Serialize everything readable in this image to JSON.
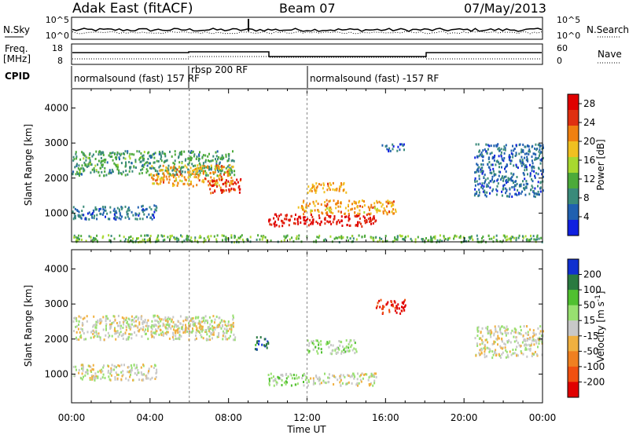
{
  "header": {
    "title": "Adak East (fitACF)",
    "beam": "Beam 07",
    "date": "07/May/2013"
  },
  "top_panels": {
    "nsky": {
      "label": "N.Sky",
      "ticks": [
        "10^5",
        "10^0"
      ],
      "right_label": "N.Search",
      "right_ticks": [
        "10^5",
        "10^0"
      ]
    },
    "freq": {
      "label_line1": "Freq.",
      "label_line2": "[MHz]",
      "ticks": [
        "18",
        "8"
      ],
      "right_label": "Nave",
      "right_ticks": [
        "60",
        "0"
      ]
    },
    "cpid": {
      "label": "CPID",
      "segments": [
        {
          "text": "normalsound (fast) 157 RF",
          "start_hour": 0
        },
        {
          "text": "rbsp 200 RF",
          "start_hour": 6
        },
        {
          "text": "normalsound (fast) -157 RF",
          "start_hour": 12
        }
      ]
    }
  },
  "colors": {
    "power_scale": [
      "#1020e0",
      "#2060b0",
      "#3a8a7a",
      "#4caa3a",
      "#a8d830",
      "#f0c020",
      "#f08010",
      "#e03010",
      "#e00000"
    ],
    "velocity_scale": [
      "#1030d0",
      "#2a7a40",
      "#50c030",
      "#98e070",
      "#c8c8c8",
      "#f0b040",
      "#f08020",
      "#f05010",
      "#e00000"
    ]
  },
  "chart_data": [
    {
      "type": "heatmap",
      "panel": "power",
      "x_label": "Time UT",
      "x_ticks": [
        "00:00",
        "04:00",
        "08:00",
        "12:00",
        "16:00",
        "20:00",
        "00:00"
      ],
      "x_range_hours": [
        0,
        24
      ],
      "ylabel": "Slant Range [km]",
      "y_ticks": [
        1000,
        2000,
        3000,
        4000
      ],
      "ylim": [
        180,
        4550
      ],
      "colorbar": {
        "label": "Power [dB]",
        "ticks": [
          4,
          8,
          12,
          16,
          20,
          24,
          28
        ],
        "range": [
          0,
          30
        ]
      },
      "regions": [
        {
          "t": [
            0.0,
            8.3
          ],
          "r": [
            2100,
            2800
          ],
          "value": 10
        },
        {
          "t": [
            4.0,
            8.2
          ],
          "r": [
            1800,
            2400
          ],
          "value": 20
        },
        {
          "t": [
            7.0,
            8.6
          ],
          "r": [
            1600,
            2000
          ],
          "value": 26
        },
        {
          "t": [
            0.0,
            4.3
          ],
          "r": [
            850,
            1250
          ],
          "value": 6
        },
        {
          "t": [
            10.0,
            15.5
          ],
          "r": [
            650,
            1000
          ],
          "value": 28
        },
        {
          "t": [
            11.5,
            16.5
          ],
          "r": [
            1000,
            1400
          ],
          "value": 20
        },
        {
          "t": [
            12.0,
            14.0
          ],
          "r": [
            1600,
            1900
          ],
          "value": 20
        },
        {
          "t": [
            15.8,
            17.0
          ],
          "r": [
            2800,
            3000
          ],
          "value": 6
        },
        {
          "t": [
            20.5,
            24.0
          ],
          "r": [
            1500,
            3000
          ],
          "value": 6
        },
        {
          "t": [
            0.0,
            24.0
          ],
          "r": [
            200,
            400
          ],
          "value": 12
        }
      ]
    },
    {
      "type": "heatmap",
      "panel": "velocity",
      "xlabel": "Time UT",
      "x_ticks": [
        "00:00",
        "04:00",
        "08:00",
        "12:00",
        "16:00",
        "20:00",
        "00:00"
      ],
      "x_range_hours": [
        0,
        24
      ],
      "ylabel": "Slant Range [km]",
      "y_ticks": [
        1000,
        2000,
        3000,
        4000
      ],
      "ylim": [
        180,
        4550
      ],
      "colorbar": {
        "label": "Velocity [m s^-1]",
        "ticks": [
          200,
          100,
          50,
          15,
          -15,
          -50,
          -100,
          -200
        ],
        "range": [
          -250,
          250
        ]
      },
      "regions": [
        {
          "t": [
            0.0,
            8.3
          ],
          "r": [
            2000,
            2700
          ],
          "value": 0
        },
        {
          "t": [
            4.0,
            8.2
          ],
          "r": [
            2200,
            2450
          ],
          "value": 0
        },
        {
          "t": [
            0.0,
            4.3
          ],
          "r": [
            850,
            1300
          ],
          "value": 0
        },
        {
          "t": [
            9.3,
            10.0
          ],
          "r": [
            1700,
            2100
          ],
          "value": 200
        },
        {
          "t": [
            10.0,
            12.0
          ],
          "r": [
            700,
            1050
          ],
          "value": 50
        },
        {
          "t": [
            12.0,
            15.5
          ],
          "r": [
            700,
            1050
          ],
          "value": 0
        },
        {
          "t": [
            12.0,
            14.5
          ],
          "r": [
            1600,
            2000
          ],
          "value": 50
        },
        {
          "t": [
            15.5,
            17.0
          ],
          "r": [
            2750,
            3150
          ],
          "value": -220
        },
        {
          "t": [
            20.5,
            24.0
          ],
          "r": [
            1500,
            2400
          ],
          "value": 0
        }
      ]
    }
  ]
}
